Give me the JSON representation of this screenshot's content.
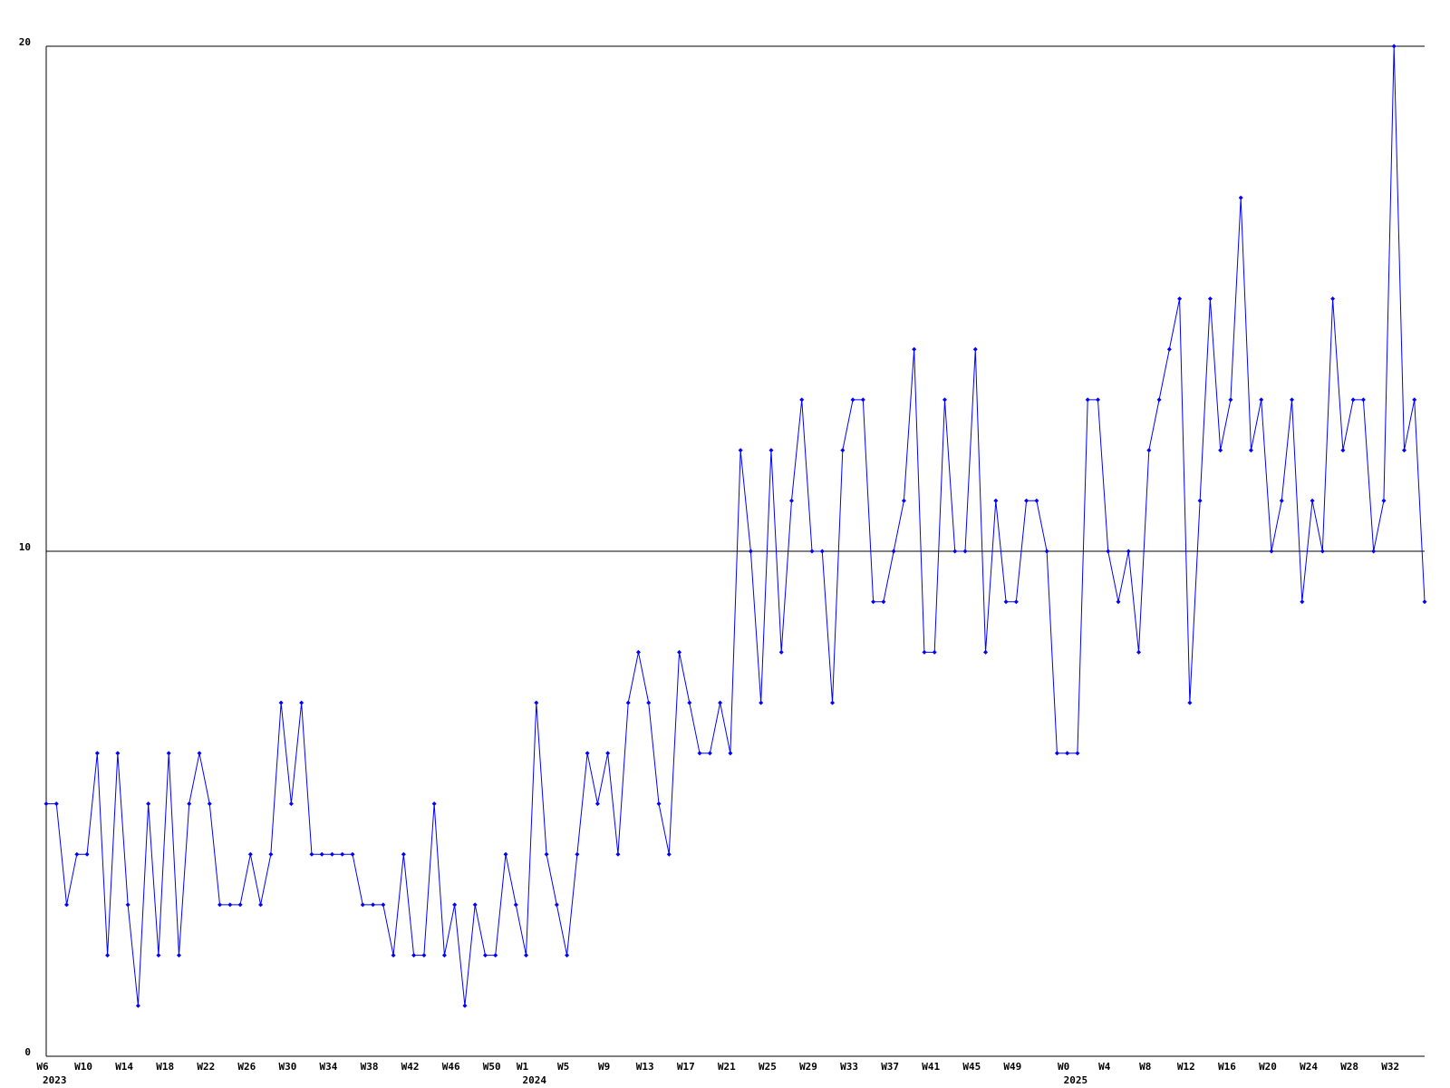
{
  "chart_data": {
    "type": "line",
    "categories": [
      "W6",
      null,
      null,
      null,
      "W10",
      null,
      null,
      null,
      "W14",
      null,
      null,
      null,
      "W18",
      null,
      null,
      null,
      "W22",
      null,
      null,
      null,
      "W26",
      null,
      null,
      null,
      "W30",
      null,
      null,
      null,
      "W34",
      null,
      null,
      null,
      "W38",
      null,
      null,
      null,
      "W42",
      null,
      null,
      null,
      "W46",
      null,
      null,
      null,
      "W50",
      null,
      null,
      "W1",
      null,
      null,
      null,
      "W5",
      null,
      null,
      null,
      "W9",
      null,
      null,
      null,
      "W13",
      null,
      null,
      null,
      "W17",
      null,
      null,
      null,
      "W21",
      null,
      null,
      null,
      "W25",
      null,
      null,
      null,
      "W29",
      null,
      null,
      null,
      "W33",
      null,
      null,
      null,
      "W37",
      null,
      null,
      null,
      "W41",
      null,
      null,
      null,
      "W45",
      null,
      null,
      null,
      "W49",
      null,
      null,
      null,
      null,
      "W0",
      null,
      null,
      null,
      "W4",
      null,
      null,
      null,
      "W8",
      null,
      null,
      null,
      "W12",
      null,
      null,
      null,
      "W16",
      null,
      null,
      null,
      "W20",
      null,
      null,
      null,
      "W24",
      null,
      null,
      null,
      "W28",
      null,
      null,
      null,
      "W32",
      null,
      null,
      null
    ],
    "category_groups": [
      "2023",
      null,
      null,
      null,
      null,
      null,
      null,
      null,
      null,
      null,
      null,
      null,
      null,
      null,
      null,
      null,
      null,
      null,
      null,
      null,
      null,
      null,
      null,
      null,
      null,
      null,
      null,
      null,
      null,
      null,
      null,
      null,
      null,
      null,
      null,
      null,
      null,
      null,
      null,
      null,
      null,
      null,
      null,
      null,
      null,
      null,
      null,
      "2024",
      null,
      null,
      null,
      null,
      null,
      null,
      null,
      null,
      null,
      null,
      null,
      null,
      null,
      null,
      null,
      null,
      null,
      null,
      null,
      null,
      null,
      null,
      null,
      null,
      null,
      null,
      null,
      null,
      null,
      null,
      null,
      null,
      null,
      null,
      null,
      null,
      null,
      null,
      null,
      null,
      null,
      null,
      null,
      null,
      null,
      null,
      null,
      null,
      null,
      null,
      null,
      null,
      "2025",
      null,
      null,
      null,
      null,
      null,
      null,
      null,
      null,
      null,
      null,
      null,
      null,
      null,
      null,
      null,
      null,
      null,
      null,
      null,
      null,
      null,
      null,
      null,
      null,
      null,
      null,
      null,
      null,
      null,
      null,
      null,
      null,
      null,
      null,
      null
    ],
    "values": [
      5,
      5,
      3,
      4,
      4,
      6,
      2,
      6,
      3,
      1,
      5,
      2,
      6,
      2,
      5,
      6,
      5,
      3,
      3,
      3,
      4,
      3,
      4,
      7,
      5,
      7,
      4,
      4,
      4,
      4,
      4,
      3,
      3,
      3,
      2,
      4,
      2,
      2,
      5,
      2,
      3,
      1,
      3,
      2,
      2,
      4,
      3,
      2,
      7,
      4,
      3,
      2,
      4,
      6,
      5,
      6,
      4,
      7,
      8,
      7,
      5,
      4,
      8,
      7,
      6,
      6,
      7,
      6,
      12,
      10,
      7,
      12,
      8,
      11,
      13,
      10,
      10,
      7,
      12,
      13,
      13,
      9,
      9,
      10,
      11,
      14,
      8,
      8,
      13,
      10,
      10,
      14,
      8,
      11,
      9,
      9,
      11,
      11,
      10,
      6,
      6,
      6,
      13,
      13,
      10,
      9,
      10,
      8,
      12,
      13,
      14,
      15,
      7,
      11,
      15,
      12,
      13,
      17,
      12,
      13,
      10,
      11,
      13,
      9,
      11,
      10,
      15,
      12,
      13,
      13,
      10,
      11,
      20,
      12,
      13,
      9
    ],
    "color": "#0000ff",
    "ylim": [
      0,
      20
    ],
    "yticks": [
      0,
      10,
      20
    ],
    "grid": true
  }
}
